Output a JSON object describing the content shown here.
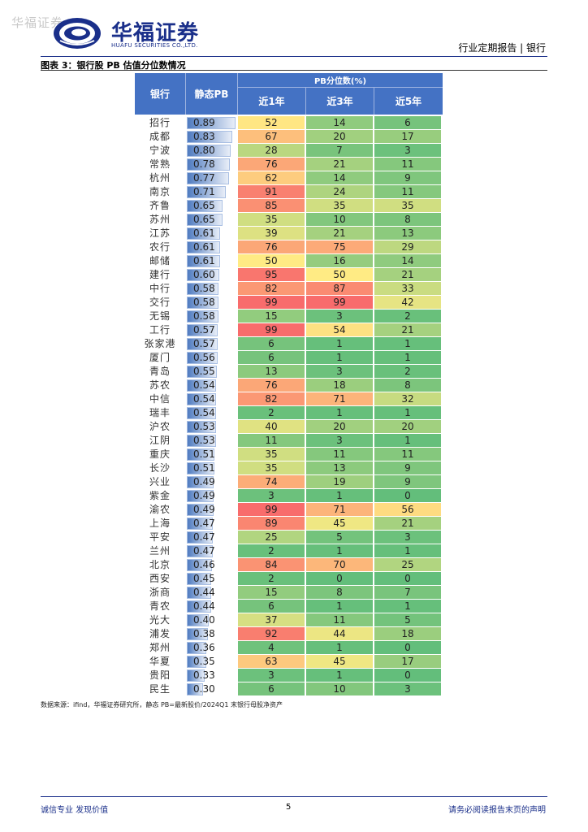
{
  "watermark": "华福证券",
  "header": {
    "brand_cn": "华福证券",
    "brand_en": "HUAFU SECURITIES CO.,LTD.",
    "doc_type": "行业定期报告 | 银行"
  },
  "figure": {
    "title": "图表 3：银行股 PB 估值分位数情况",
    "col_bank": "银行",
    "col_pb": "静态PB",
    "pb_group": "PB分位数(%)",
    "col_1y": "近1年",
    "col_3y": "近3年",
    "col_5y": "近5年",
    "source": "数据来源：ifind，华福证券研究所，静态 PB=最新股价/2024Q1 末银行母股净资产"
  },
  "colors": {
    "header_blue": "#4472c4",
    "brand_blue": "#1a2f8a"
  },
  "rows": [
    {
      "bank": "招行",
      "pb": "0.89",
      "p1": 52,
      "p3": 14,
      "p5": 6
    },
    {
      "bank": "成都",
      "pb": "0.83",
      "p1": 67,
      "p3": 20,
      "p5": 17
    },
    {
      "bank": "宁波",
      "pb": "0.80",
      "p1": 28,
      "p3": 7,
      "p5": 3
    },
    {
      "bank": "常熟",
      "pb": "0.78",
      "p1": 76,
      "p3": 21,
      "p5": 11
    },
    {
      "bank": "杭州",
      "pb": "0.77",
      "p1": 62,
      "p3": 14,
      "p5": 9
    },
    {
      "bank": "南京",
      "pb": "0.71",
      "p1": 91,
      "p3": 24,
      "p5": 11
    },
    {
      "bank": "齐鲁",
      "pb": "0.65",
      "p1": 85,
      "p3": 35,
      "p5": 35
    },
    {
      "bank": "苏州",
      "pb": "0.65",
      "p1": 35,
      "p3": 10,
      "p5": 8
    },
    {
      "bank": "江苏",
      "pb": "0.61",
      "p1": 39,
      "p3": 21,
      "p5": 13
    },
    {
      "bank": "农行",
      "pb": "0.61",
      "p1": 76,
      "p3": 75,
      "p5": 29
    },
    {
      "bank": "邮储",
      "pb": "0.61",
      "p1": 50,
      "p3": 16,
      "p5": 14
    },
    {
      "bank": "建行",
      "pb": "0.60",
      "p1": 95,
      "p3": 50,
      "p5": 21
    },
    {
      "bank": "中行",
      "pb": "0.58",
      "p1": 82,
      "p3": 87,
      "p5": 33
    },
    {
      "bank": "交行",
      "pb": "0.58",
      "p1": 99,
      "p3": 99,
      "p5": 42
    },
    {
      "bank": "无锡",
      "pb": "0.58",
      "p1": 15,
      "p3": 3,
      "p5": 2
    },
    {
      "bank": "工行",
      "pb": "0.57",
      "p1": 99,
      "p3": 54,
      "p5": 21
    },
    {
      "bank": "张家港",
      "pb": "0.57",
      "p1": 6,
      "p3": 1,
      "p5": 1
    },
    {
      "bank": "厦门",
      "pb": "0.56",
      "p1": 6,
      "p3": 1,
      "p5": 1
    },
    {
      "bank": "青岛",
      "pb": "0.55",
      "p1": 13,
      "p3": 3,
      "p5": 2
    },
    {
      "bank": "苏农",
      "pb": "0.54",
      "p1": 76,
      "p3": 18,
      "p5": 8
    },
    {
      "bank": "中信",
      "pb": "0.54",
      "p1": 82,
      "p3": 71,
      "p5": 32
    },
    {
      "bank": "瑞丰",
      "pb": "0.54",
      "p1": 2,
      "p3": 1,
      "p5": 1
    },
    {
      "bank": "沪农",
      "pb": "0.53",
      "p1": 40,
      "p3": 20,
      "p5": 20
    },
    {
      "bank": "江阴",
      "pb": "0.53",
      "p1": 11,
      "p3": 3,
      "p5": 1
    },
    {
      "bank": "重庆",
      "pb": "0.51",
      "p1": 35,
      "p3": 11,
      "p5": 11
    },
    {
      "bank": "长沙",
      "pb": "0.51",
      "p1": 35,
      "p3": 13,
      "p5": 9
    },
    {
      "bank": "兴业",
      "pb": "0.49",
      "p1": 74,
      "p3": 19,
      "p5": 9
    },
    {
      "bank": "紫金",
      "pb": "0.49",
      "p1": 3,
      "p3": 1,
      "p5": 0
    },
    {
      "bank": "渝农",
      "pb": "0.49",
      "p1": 99,
      "p3": 71,
      "p5": 56
    },
    {
      "bank": "上海",
      "pb": "0.47",
      "p1": 89,
      "p3": 45,
      "p5": 21
    },
    {
      "bank": "平安",
      "pb": "0.47",
      "p1": 25,
      "p3": 5,
      "p5": 3
    },
    {
      "bank": "兰州",
      "pb": "0.47",
      "p1": 2,
      "p3": 1,
      "p5": 1
    },
    {
      "bank": "北京",
      "pb": "0.46",
      "p1": 84,
      "p3": 70,
      "p5": 25
    },
    {
      "bank": "西安",
      "pb": "0.45",
      "p1": 2,
      "p3": 0,
      "p5": 0
    },
    {
      "bank": "浙商",
      "pb": "0.44",
      "p1": 15,
      "p3": 8,
      "p5": 7
    },
    {
      "bank": "青农",
      "pb": "0.44",
      "p1": 6,
      "p3": 1,
      "p5": 1
    },
    {
      "bank": "光大",
      "pb": "0.40",
      "p1": 37,
      "p3": 11,
      "p5": 5
    },
    {
      "bank": "浦发",
      "pb": "0.38",
      "p1": 92,
      "p3": 44,
      "p5": 18
    },
    {
      "bank": "郑州",
      "pb": "0.36",
      "p1": 4,
      "p3": 1,
      "p5": 0
    },
    {
      "bank": "华夏",
      "pb": "0.35",
      "p1": 63,
      "p3": 45,
      "p5": 17
    },
    {
      "bank": "贵阳",
      "pb": "0.33",
      "p1": 3,
      "p3": 1,
      "p5": 0
    },
    {
      "bank": "民生",
      "pb": "0.30",
      "p1": 6,
      "p3": 10,
      "p5": 3
    }
  ],
  "footer": {
    "left": "诚信专业  发现价值",
    "page": "5",
    "right": "请务必阅读报告末页的声明"
  }
}
